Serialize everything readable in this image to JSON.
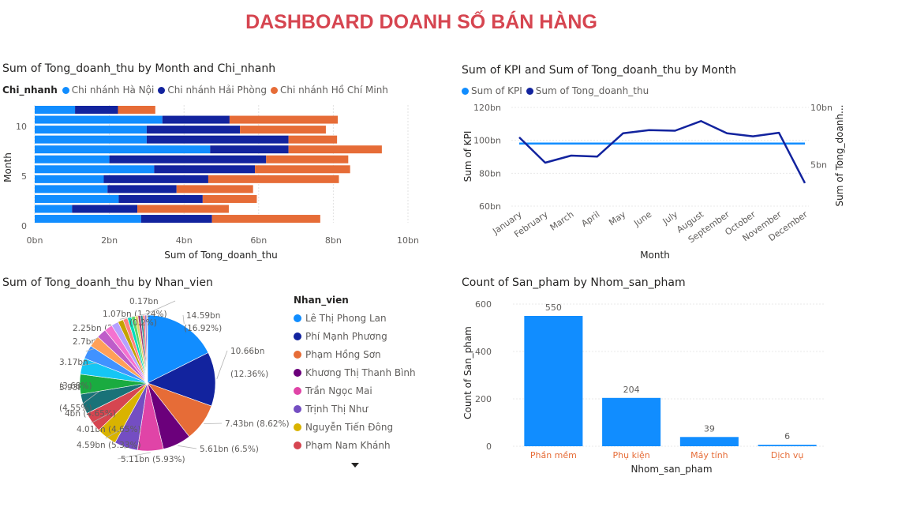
{
  "dashboard_title": "DASHBOARD DOANH SỐ BÁN HÀNG",
  "chart_data": [
    {
      "id": "bar_month_branch",
      "type": "bar",
      "orientation": "horizontal",
      "stacked": true,
      "title": "Sum of Tong_doanh_thu by Month and Chi_nhanh",
      "xlabel": "Sum of Tong_doanh_thu",
      "ylabel": "Month",
      "legend_title": "Chi_nhanh",
      "categories": [
        1,
        2,
        3,
        4,
        5,
        6,
        7,
        8,
        9,
        10,
        11,
        12
      ],
      "x_ticks": [
        "0bn",
        "2bn",
        "4bn",
        "6bn",
        "8bn",
        "10bn"
      ],
      "y_ticks": [
        "0",
        "5",
        "10"
      ],
      "xlim": [
        0,
        10
      ],
      "grid": true,
      "series": [
        {
          "name": "Chi nhánh Hà Nội",
          "color": "#118DFF",
          "values": [
            2.85,
            1.0,
            2.25,
            1.95,
            1.85,
            3.2,
            2.0,
            4.7,
            3.0,
            3.0,
            3.42,
            1.08
          ]
        },
        {
          "name": "Chi nhánh Hải Phòng",
          "color": "#12239E",
          "values": [
            1.9,
            1.75,
            2.25,
            1.85,
            2.8,
            2.7,
            4.2,
            2.1,
            3.8,
            2.5,
            1.8,
            1.15
          ]
        },
        {
          "name": "Chi nhánh Hồ Chí Minh",
          "color": "#E66C37",
          "values": [
            2.9,
            2.45,
            1.45,
            2.05,
            3.5,
            2.55,
            2.2,
            2.5,
            1.3,
            2.3,
            2.9,
            1.0
          ]
        }
      ]
    },
    {
      "id": "line_kpi",
      "type": "line",
      "title": "Sum of KPI and Sum of Tong_doanh_thu by Month",
      "xlabel": "Month",
      "ylabel": "Sum of KPI",
      "y2label": "Sum of Tong_doanh...",
      "categories": [
        "January",
        "February",
        "March",
        "April",
        "May",
        "June",
        "July",
        "August",
        "September",
        "October",
        "November",
        "December"
      ],
      "y_ticks": [
        "60bn",
        "80bn",
        "100bn",
        "120bn"
      ],
      "y2_ticks": [
        "5bn",
        "10bn"
      ],
      "ylim": [
        60,
        120
      ],
      "y2lim": [
        0,
        10
      ],
      "series": [
        {
          "name": "Sum of KPI",
          "axis": "left",
          "color": "#118DFF",
          "values": [
            98,
            98,
            98,
            98,
            98,
            98,
            98,
            98,
            98,
            98,
            98,
            98
          ]
        },
        {
          "name": "Sum of Tong_doanh_thu",
          "axis": "right",
          "color": "#12239E",
          "values": [
            7.7,
            5.2,
            5.9,
            5.8,
            8.1,
            8.4,
            8.35,
            9.3,
            8.1,
            7.8,
            8.15,
            3.2
          ]
        }
      ]
    },
    {
      "id": "pie_nhan_vien",
      "type": "pie",
      "title": "Sum of Tong_doanh_thu by Nhan_vien",
      "legend_title": "Nhan_vien",
      "slices": [
        {
          "name": "Lê Thị Phong Lan",
          "value": 14.59,
          "label": "14.59bn (16.92%)",
          "color": "#118DFF"
        },
        {
          "name": "Phí Mạnh Phương",
          "value": 10.66,
          "label": "10.66bn (12.36%)",
          "color": "#12239E"
        },
        {
          "name": "Phạm Hồng Sơn",
          "value": 7.43,
          "label": "7.43bn (8.62%)",
          "color": "#E66C37"
        },
        {
          "name": "Khương Thị Thanh Bình",
          "value": 5.61,
          "label": "5.61bn (6.5%)",
          "color": "#6B007B"
        },
        {
          "name": "Trần Ngọc Mai",
          "value": 5.11,
          "label": "5.11bn (5.93%)",
          "color": "#E044A7"
        },
        {
          "name": "Trịnh Thị Như",
          "value": 4.59,
          "label": "4.59bn (5.33%)",
          "color": "#744EC2"
        },
        {
          "name": "Nguyễn Tiến Đông",
          "value": 4.01,
          "label": "4.01bn (4.65%)",
          "color": "#D9B300"
        },
        {
          "name": "Phạm Nam Khánh",
          "value": 4.0,
          "label": "4bn (4.65%)",
          "color": "#D64550"
        },
        {
          "name": "",
          "value": 3.93,
          "label": "3.93bn (4.55%)",
          "color": "#197278"
        },
        {
          "name": "",
          "value": 3.93,
          "label": "",
          "color": "#1AAB40"
        },
        {
          "name": "",
          "value": 3.17,
          "label": "3.17bn (3.68%)",
          "color": "#15C6F4"
        },
        {
          "name": "",
          "value": 2.7,
          "label": "2.7bn (3.13%)",
          "color": "#4092FF"
        },
        {
          "name": "",
          "value": 2.25,
          "label": "2.25bn (2.61%)",
          "color": "#FFA058"
        },
        {
          "name": "",
          "value": 1.9,
          "label": "",
          "color": "#BE5DC9"
        },
        {
          "name": "",
          "value": 1.6,
          "label": "",
          "color": "#F472D0"
        },
        {
          "name": "",
          "value": 1.4,
          "label": "",
          "color": "#B5A1FF"
        },
        {
          "name": "",
          "value": 1.07,
          "label": "1.07bn (1.24%)",
          "color": "#C4A200"
        },
        {
          "name": "",
          "value": 0.9,
          "label": "",
          "color": "#FF8080"
        },
        {
          "name": "",
          "value": 0.8,
          "label": "",
          "color": "#00DBBC"
        },
        {
          "name": "",
          "value": 0.7,
          "label": "",
          "color": "#5BD667"
        },
        {
          "name": "",
          "value": 0.6,
          "label": "",
          "color": "#E8D166"
        },
        {
          "name": "",
          "value": 0.5,
          "label": "",
          "color": "#A43B76"
        },
        {
          "name": "",
          "value": 0.45,
          "label": "",
          "color": "#2B8A8A"
        },
        {
          "name": "",
          "value": 0.4,
          "label": "",
          "color": "#FD6A6A"
        },
        {
          "name": "",
          "value": 0.35,
          "label": "",
          "color": "#8D6FD1"
        },
        {
          "name": "",
          "value": 0.17,
          "label": "0.17bn (0.2%)",
          "color": "#EE9E64"
        }
      ]
    },
    {
      "id": "bar_product_group",
      "type": "bar",
      "title": "Count of San_pham by Nhom_san_pham",
      "xlabel": "Nhom_san_pham",
      "ylabel": "Count of San_pham",
      "categories": [
        "Phần mềm",
        "Phụ kiện",
        "Máy tính",
        "Dịch vụ"
      ],
      "values": [
        550,
        204,
        39,
        6
      ],
      "data_labels": [
        "550",
        "204",
        "39",
        "6"
      ],
      "y_ticks": [
        "0",
        "200",
        "400",
        "600"
      ],
      "ylim": [
        0,
        600
      ],
      "color": "#118DFF",
      "category_label_color": "#E66C37"
    }
  ]
}
